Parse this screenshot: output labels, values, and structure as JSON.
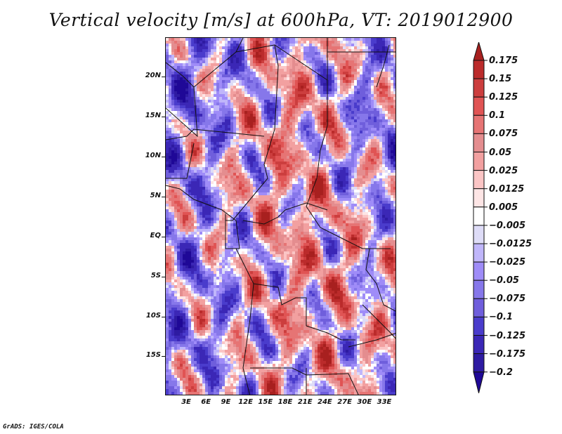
{
  "title": "Vertical velocity [m/s] at 600hPa, VT: 2019012900",
  "footer": "GrADS: IGES/COLA",
  "map": {
    "variable": "Vertical velocity",
    "units": "m/s",
    "level": "600hPa",
    "valid_time": "2019012900",
    "lat_labels": [
      "20N",
      "15N",
      "10N",
      "5N",
      "EQ",
      "5S",
      "10S",
      "15S"
    ],
    "lon_labels": [
      "3E",
      "6E",
      "9E",
      "12E",
      "15E",
      "18E",
      "21E",
      "24E",
      "27E",
      "30E",
      "33E"
    ]
  },
  "colorbar": {
    "labels": [
      "0.175",
      "0.15",
      "0.125",
      "0.1",
      "0.075",
      "0.05",
      "0.025",
      "0.0125",
      "0.005",
      "-0.005",
      "-0.0125",
      "-0.025",
      "-0.05",
      "-0.075",
      "-0.1",
      "-0.125",
      "-0.175",
      "-0.2"
    ],
    "colors": [
      "#a8201f",
      "#bb2b2b",
      "#cc3e3e",
      "#e05454",
      "#e67474",
      "#e48d8f",
      "#f2a0a0",
      "#fbc5c5",
      "#fde5e5",
      "#ffffff",
      "#dedcf7",
      "#c0b6fa",
      "#9f8cf8",
      "#8677ea",
      "#6f5edc",
      "#4a3ccc",
      "#3b27b6",
      "#2e1ba2",
      "#1f0897",
      "#1a0590"
    ],
    "top_arrow_color": "#a8201f",
    "bottom_arrow_color": "#1f0897"
  }
}
